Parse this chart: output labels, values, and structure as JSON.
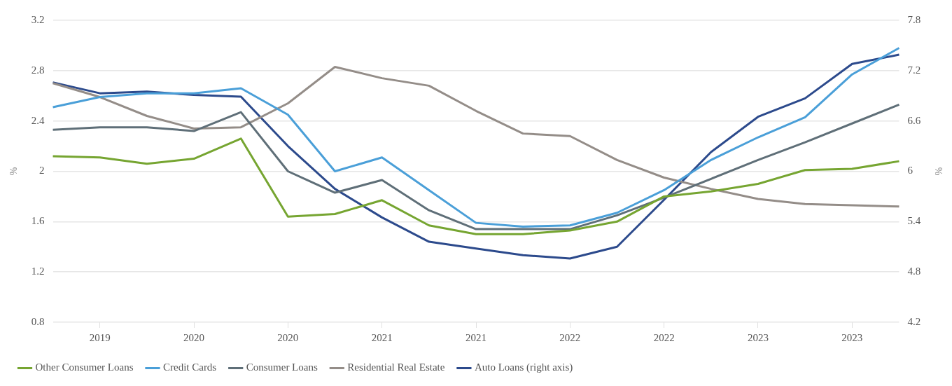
{
  "chart_data": {
    "type": "line",
    "ylabel": "%",
    "y2label": "%",
    "categories": [
      null,
      "2019",
      null,
      "2020",
      null,
      "2020",
      null,
      "2021",
      null,
      "2021",
      null,
      "2022",
      null,
      "2022",
      null,
      "2023",
      null,
      "2023",
      null
    ],
    "ylim": [
      0.8,
      3.2
    ],
    "yticks": [
      0.8,
      1.2,
      1.6,
      2,
      2.4,
      2.8,
      3.2
    ],
    "y2lim": [
      4.2,
      7.8
    ],
    "y2ticks": [
      4.2,
      4.8,
      5.4,
      6,
      6.6,
      7.2,
      7.8
    ],
    "grid": "y",
    "legend": "bottom left",
    "marker": "none",
    "line_style": "solid",
    "series": [
      {
        "name": "Other Consumer Loans",
        "color": "#76a531",
        "values": [
          2.12,
          2.11,
          2.06,
          2.1,
          2.26,
          1.64,
          1.66,
          1.77,
          1.57,
          1.5,
          1.5,
          1.53,
          1.6,
          1.8,
          1.84,
          1.9,
          2.01,
          2.02,
          2.08
        ]
      },
      {
        "name": "Credit Cards",
        "color": "#4a9fd8",
        "values": [
          2.51,
          2.59,
          2.62,
          2.62,
          2.66,
          2.45,
          2,
          2.11,
          1.85,
          1.59,
          1.56,
          1.57,
          1.67,
          1.85,
          2.09,
          2.27,
          2.43,
          2.77,
          2.98
        ]
      },
      {
        "name": "Consumer Loans",
        "color": "#5f6f78",
        "values": [
          2.33,
          2.35,
          2.35,
          2.32,
          2.47,
          2,
          1.83,
          1.93,
          1.69,
          1.54,
          1.54,
          1.54,
          1.65,
          1.79,
          1.94,
          2.09,
          2.23,
          2.38,
          2.53
        ]
      },
      {
        "name": "Residential Real Estate",
        "color": "#948d88",
        "values": [
          2.7,
          2.59,
          2.44,
          2.34,
          2.35,
          2.54,
          2.83,
          2.74,
          2.68,
          2.48,
          2.3,
          2.28,
          2.09,
          1.95,
          1.86,
          1.78,
          1.74,
          1.73,
          1.72
        ]
      },
      {
        "name": "Auto Loans (right axis)",
        "color": "#2c4a8c",
        "axis": "y2",
        "values": [
          7.06,
          6.93,
          6.95,
          6.91,
          6.89,
          6.3,
          5.79,
          5.45,
          5.16,
          5.08,
          5,
          4.96,
          5.1,
          5.66,
          6.23,
          6.65,
          6.87,
          7.28,
          7.39
        ]
      }
    ]
  }
}
